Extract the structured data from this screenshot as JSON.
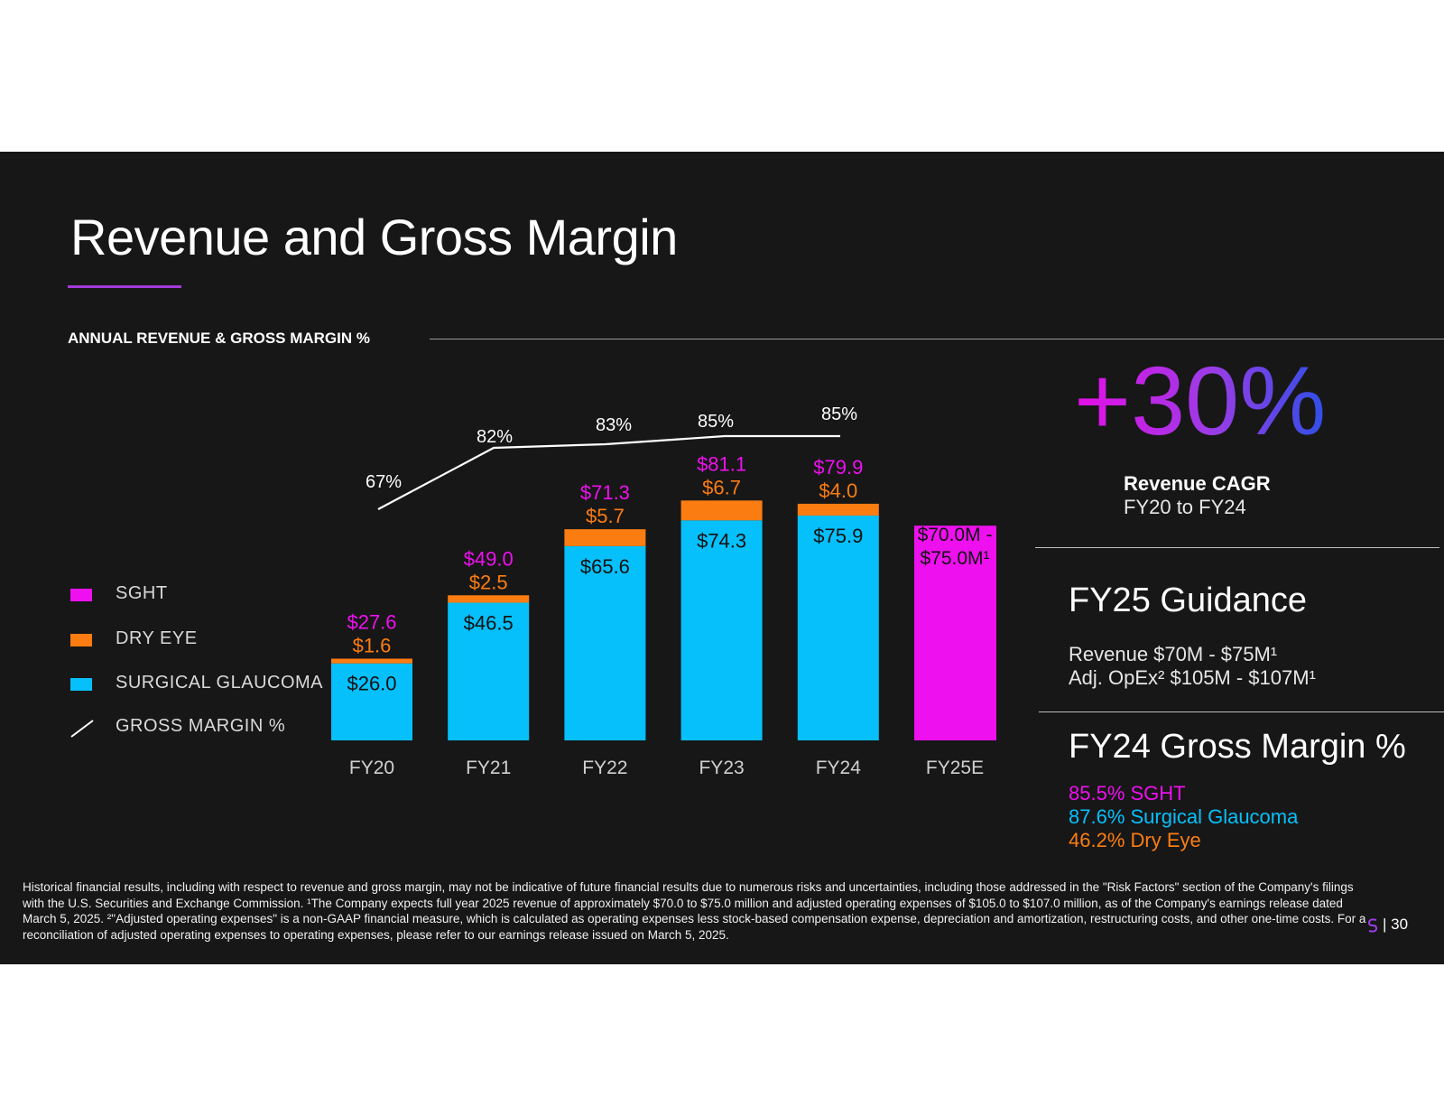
{
  "title": "Revenue and Gross Margin",
  "section_label": "ANNUAL REVENUE & GROSS MARGIN %",
  "colors": {
    "sght": "#ee10ee",
    "dry_eye": "#fb7d12",
    "surgical_glaucoma": "#06c0fb",
    "gross_margin_line": "#ffffff",
    "background": "#171717"
  },
  "legend": [
    {
      "label": "SGHT",
      "color": "#ee10ee",
      "kind": "swatch"
    },
    {
      "label": "DRY EYE",
      "color": "#fb7d12",
      "kind": "swatch"
    },
    {
      "label": "SURGICAL GLAUCOMA",
      "color": "#06c0fb",
      "kind": "swatch"
    },
    {
      "label": "GROSS MARGIN %",
      "color": "#ffffff",
      "kind": "line"
    }
  ],
  "chart_data": {
    "type": "bar",
    "stacked": true,
    "title": "ANNUAL REVENUE & GROSS MARGIN %",
    "categories": [
      "FY20",
      "FY21",
      "FY22",
      "FY23",
      "FY24",
      "FY25E"
    ],
    "units": "$M",
    "ylim": [
      0,
      90
    ],
    "series": [
      {
        "name": "SURGICAL GLAUCOMA",
        "values": [
          26.0,
          46.5,
          65.6,
          74.3,
          75.9,
          null
        ],
        "labels": [
          "$26.0",
          "$46.5",
          "$65.6",
          "$74.3",
          "$75.9",
          null
        ]
      },
      {
        "name": "DRY EYE",
        "values": [
          1.6,
          2.5,
          5.7,
          6.7,
          4.0,
          null
        ],
        "labels": [
          "$1.6",
          "$2.5",
          "$5.7",
          "$6.7",
          "$4.0",
          null
        ]
      },
      {
        "name": "SGHT (guidance)",
        "values": [
          null,
          null,
          null,
          null,
          null,
          72.5
        ],
        "labels": [
          null,
          null,
          null,
          null,
          null,
          "$70.0M - $75.0M¹"
        ]
      }
    ],
    "totals": [
      27.6,
      49.0,
      71.3,
      81.1,
      79.9,
      null
    ],
    "total_labels": [
      "$27.6",
      "$49.0",
      "$71.3",
      "$81.1",
      "$79.9",
      null
    ],
    "gross_margin": {
      "name": "GROSS MARGIN %",
      "values": [
        67,
        82,
        83,
        85,
        85,
        null
      ],
      "labels": [
        "67%",
        "82%",
        "83%",
        "85%",
        "85%",
        null
      ]
    }
  },
  "cagr": {
    "value": "+30%",
    "label": "Revenue CAGR",
    "sub": "FY20 to FY24"
  },
  "guidance": {
    "title": "FY25 Guidance",
    "lines": [
      "Revenue $70M - $75M¹",
      "Adj. OpEx² $105M - $107M¹"
    ]
  },
  "gross_margin_fy24": {
    "title": "FY24 Gross Margin %",
    "lines": [
      {
        "text": "85.5% SGHT",
        "color": "#ee10ee"
      },
      {
        "text": "87.6% Surgical Glaucoma",
        "color": "#06c0fb"
      },
      {
        "text": "46.2% Dry Eye",
        "color": "#fb7d12"
      }
    ]
  },
  "footnote": "Historical financial results, including with respect to revenue and gross margin, may not be indicative of future financial results due to numerous risks and uncertainties, including those addressed in the \"Risk Factors\" section of the Company's filings with the U.S. Securities and Exchange Commission. ¹The Company expects full year 2025 revenue of approximately $70.0 to $75.0 million and adjusted operating expenses of $105.0 to $107.0 million, as of the Company's earnings release dated March 5, 2025. ²\"Adjusted operating expenses\" is a non-GAAP financial measure, which is calculated as operating expenses less stock-based compensation expense, depreciation and amortization, restructuring costs, and other one-time costs. For a reconciliation of adjusted operating expenses to operating expenses, please refer to our earnings release issued on March 5, 2025.",
  "page_number": "| 30"
}
